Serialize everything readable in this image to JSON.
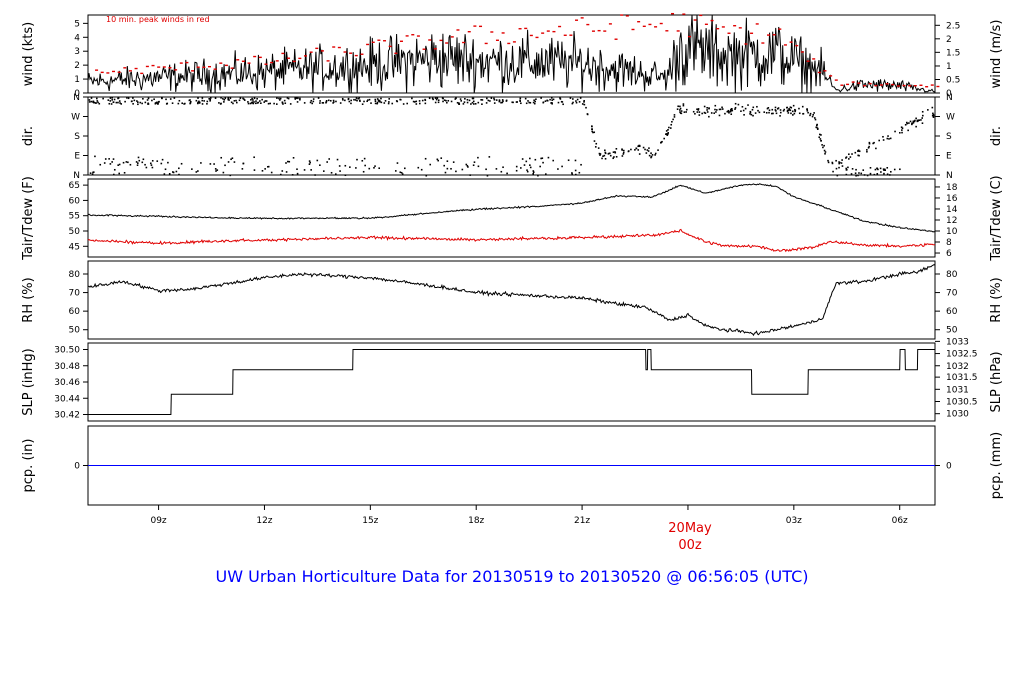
{
  "title": "UW Urban Horticulture Data for 20130519  to  20130520 @ 06:56:05  (UTC)",
  "date_marker": {
    "line1": "20May",
    "line2": "00z"
  },
  "x_axis": {
    "range_hours": [
      7.0,
      31.0
    ],
    "ticks": [
      {
        "h": 9,
        "label": "09z"
      },
      {
        "h": 12,
        "label": "12z"
      },
      {
        "h": 15,
        "label": "15z"
      },
      {
        "h": 18,
        "label": "18z"
      },
      {
        "h": 21,
        "label": "21z"
      },
      {
        "h": 24,
        "label": ""
      },
      {
        "h": 27,
        "label": "03z"
      },
      {
        "h": 30,
        "label": "06z"
      }
    ]
  },
  "colors": {
    "axis": "#000000",
    "peak": "#e00000",
    "dew": "#e00000",
    "precip": "#0000ff",
    "footer": "#0000ff"
  },
  "panels": {
    "wind": {
      "ylabel_left": "wind (kts)",
      "ylabel_right": "wind (m/s)",
      "ylim": [
        0,
        5.6
      ],
      "left_ticks": [
        {
          "v": 0,
          "l": "0"
        },
        {
          "v": 1,
          "l": "1"
        },
        {
          "v": 2,
          "l": "2"
        },
        {
          "v": 3,
          "l": "3"
        },
        {
          "v": 4,
          "l": "4"
        },
        {
          "v": 5,
          "l": "5"
        }
      ],
      "right_ticks": [
        {
          "v": 0,
          "l": "0"
        },
        {
          "v": 0.97,
          "l": "0.5"
        },
        {
          "v": 1.94,
          "l": "1"
        },
        {
          "v": 2.92,
          "l": "1.5"
        },
        {
          "v": 3.89,
          "l": "2"
        },
        {
          "v": 4.86,
          "l": "2.5"
        }
      ],
      "note": "10 min. peak winds in red"
    },
    "dir": {
      "ylabel_left": "dir.",
      "ylabel_right": "dir.",
      "ylim": [
        0,
        360
      ],
      "left_ticks": [
        {
          "v": 0,
          "l": "N"
        },
        {
          "v": 90,
          "l": "E"
        },
        {
          "v": 180,
          "l": "S"
        },
        {
          "v": 270,
          "l": "W"
        },
        {
          "v": 360,
          "l": "N"
        }
      ],
      "right_ticks": [
        {
          "v": 0,
          "l": "N"
        },
        {
          "v": 90,
          "l": "E"
        },
        {
          "v": 180,
          "l": "S"
        },
        {
          "v": 270,
          "l": "W"
        },
        {
          "v": 360,
          "l": "N"
        }
      ]
    },
    "temp": {
      "ylabel_left": "Tair/Tdew (F)",
      "ylabel_right": "Tair/Tdew (C)",
      "ylim": [
        41.5,
        67
      ],
      "left_ticks": [
        {
          "v": 45,
          "l": "45"
        },
        {
          "v": 50,
          "l": "50"
        },
        {
          "v": 55,
          "l": "55"
        },
        {
          "v": 60,
          "l": "60"
        },
        {
          "v": 65,
          "l": "65"
        }
      ],
      "right_ticks": [
        {
          "v": 42.8,
          "l": "6"
        },
        {
          "v": 46.4,
          "l": "8"
        },
        {
          "v": 50,
          "l": "10"
        },
        {
          "v": 53.6,
          "l": "12"
        },
        {
          "v": 57.2,
          "l": "14"
        },
        {
          "v": 60.8,
          "l": "16"
        },
        {
          "v": 64.4,
          "l": "18"
        }
      ]
    },
    "rh": {
      "ylabel_left": "RH (%)",
      "ylabel_right": "RH (%)",
      "ylim": [
        45,
        87
      ],
      "left_ticks": [
        {
          "v": 50,
          "l": "50"
        },
        {
          "v": 60,
          "l": "60"
        },
        {
          "v": 70,
          "l": "70"
        },
        {
          "v": 80,
          "l": "80"
        }
      ],
      "right_ticks": [
        {
          "v": 50,
          "l": "50"
        },
        {
          "v": 60,
          "l": "60"
        },
        {
          "v": 70,
          "l": "70"
        },
        {
          "v": 80,
          "l": "80"
        }
      ]
    },
    "slp": {
      "ylabel_left": "SLP (inHg)",
      "ylabel_right": "SLP (hPa)",
      "ylim": [
        30.412,
        30.508
      ],
      "left_ticks": [
        {
          "v": 30.42,
          "l": "30.42"
        },
        {
          "v": 30.44,
          "l": "30.44"
        },
        {
          "v": 30.46,
          "l": "30.46"
        },
        {
          "v": 30.48,
          "l": "30.48"
        },
        {
          "v": 30.5,
          "l": "30.50"
        }
      ],
      "right_ticks": [
        {
          "v": 30.421,
          "l": "1030"
        },
        {
          "v": 30.436,
          "l": "1030.5"
        },
        {
          "v": 30.451,
          "l": "1031"
        },
        {
          "v": 30.466,
          "l": "1031.5"
        },
        {
          "v": 30.48,
          "l": "1032"
        },
        {
          "v": 30.495,
          "l": "1032.5"
        },
        {
          "v": 30.51,
          "l": "1033"
        }
      ]
    },
    "pcp": {
      "ylabel_left": "pcp. (in)",
      "ylabel_right": "pcp. (mm)",
      "ylim": [
        -1,
        1
      ],
      "left_ticks": [
        {
          "v": 0,
          "l": "0"
        }
      ],
      "right_ticks": [
        {
          "v": 0,
          "l": "0"
        }
      ]
    }
  },
  "chart_data": {
    "type": "line",
    "x_unit": "hours UTC from 2013-05-19 00z",
    "series": [
      {
        "name": "wind speed",
        "x": [
          7,
          9,
          12,
          15,
          17,
          18,
          21,
          23.4,
          23.8,
          25,
          26.5,
          27.8,
          28.2,
          29,
          30,
          31
        ],
        "y": [
          0.8,
          1.1,
          1.5,
          2.0,
          2.5,
          2.3,
          2.1,
          1.1,
          3.3,
          2.7,
          2.8,
          1.5,
          0.2,
          0.6,
          0.5,
          0.1
        ]
      },
      {
        "name": "10 min. peak winds",
        "x": [
          7,
          12,
          18,
          23.8,
          25,
          26.5,
          28.2,
          31
        ],
        "y": [
          1.6,
          2.5,
          4.5,
          5.5,
          4.8,
          4.6,
          0.8,
          0.6
        ]
      },
      {
        "name": "wind direction",
        "x": [
          7,
          12,
          18,
          21,
          21.5,
          22,
          22.5,
          23,
          23.3,
          23.7,
          27.5,
          28,
          31
        ],
        "y": [
          360,
          340,
          340,
          350,
          80,
          110,
          130,
          90,
          170,
          300,
          300,
          40,
          300
        ]
      },
      {
        "name": "Tair",
        "x": [
          7,
          9,
          12,
          15,
          18,
          20,
          21,
          22,
          23,
          23.8,
          24.5,
          25.5,
          26,
          26.5,
          27,
          28,
          29,
          30,
          31
        ],
        "y": [
          55.2,
          54.8,
          54.1,
          54.2,
          57.1,
          58.2,
          59.1,
          61.5,
          61.1,
          65.0,
          62.3,
          65.0,
          65.4,
          64.6,
          61.2,
          57.2,
          53.2,
          51.1,
          49.8
        ]
      },
      {
        "name": "Tdew",
        "x": [
          7,
          9,
          12,
          15,
          18,
          21,
          23,
          23.8,
          24.5,
          25,
          26,
          26.5,
          27.5,
          28,
          29,
          30,
          31
        ],
        "y": [
          47.0,
          46.0,
          47.1,
          47.8,
          47.2,
          47.9,
          48.6,
          50.0,
          46.5,
          45.2,
          45.0,
          43.5,
          44.5,
          46.5,
          45.5,
          45.0,
          45.6
        ]
      },
      {
        "name": "RH",
        "x": [
          7,
          8,
          9,
          10,
          12,
          13,
          15,
          17,
          18,
          20,
          21,
          22,
          22.8,
          23.5,
          24,
          24.5,
          25,
          25.5,
          26,
          26.5,
          27.5,
          27.8,
          28.2,
          29,
          30,
          30.5,
          31
        ],
        "y": [
          73,
          76,
          71,
          72,
          78,
          80,
          78,
          73,
          70,
          68,
          67,
          64,
          62,
          55,
          58,
          52,
          50,
          49,
          48,
          50,
          54,
          56,
          75,
          76,
          80,
          81,
          85
        ]
      },
      {
        "name": "SLP",
        "x": [
          7,
          9.35,
          9.36,
          11.1,
          11.11,
          14.5,
          14.51,
          22.8,
          22.81,
          22.85,
          22.86,
          22.95,
          22.96,
          25.8,
          25.81,
          27.4,
          27.41,
          30.0,
          30.01,
          30.15,
          30.16,
          30.5,
          30.51,
          31
        ],
        "y": [
          30.42,
          30.42,
          30.445,
          30.445,
          30.475,
          30.475,
          30.5,
          30.5,
          30.475,
          30.475,
          30.5,
          30.5,
          30.475,
          30.475,
          30.445,
          30.445,
          30.475,
          30.475,
          30.5,
          30.5,
          30.475,
          30.475,
          30.5,
          30.5
        ]
      },
      {
        "name": "precipitation",
        "x": [
          7,
          31
        ],
        "y": [
          0,
          0
        ]
      }
    ]
  }
}
